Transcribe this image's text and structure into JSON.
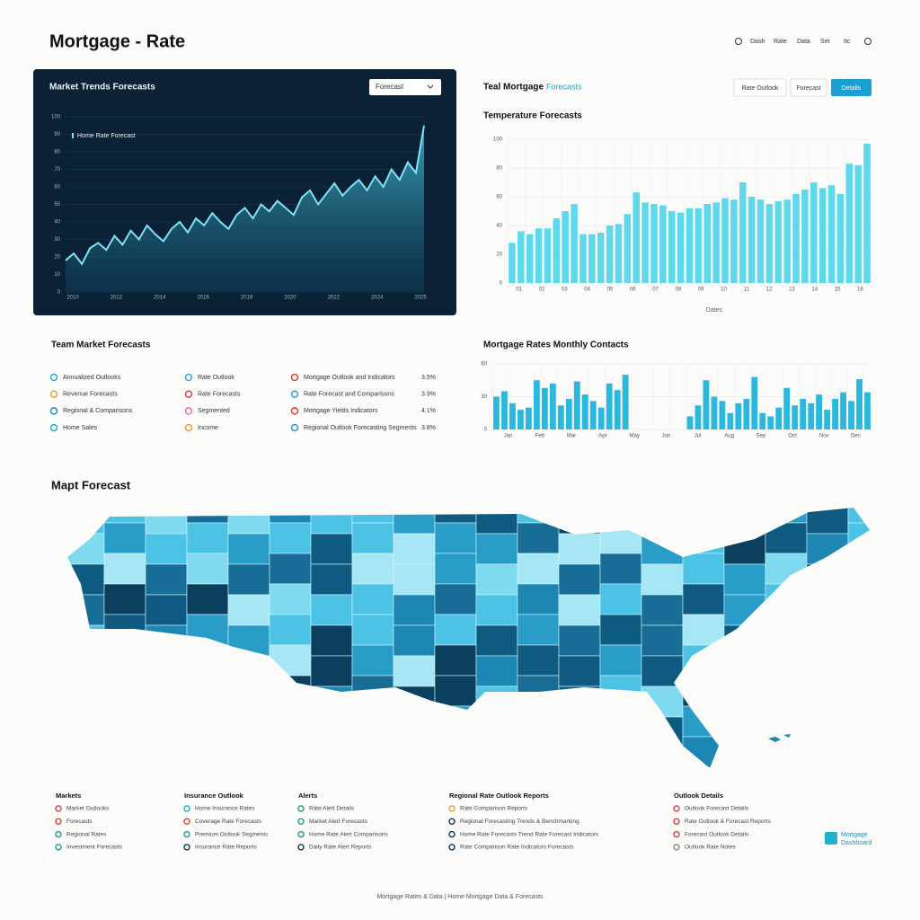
{
  "header": {
    "title": "Mortgage - Rate",
    "nav": [
      "Dash",
      "Rate",
      "Data",
      "Set",
      "Itc"
    ]
  },
  "area_chart": {
    "title": "Market Trends Forecasts",
    "dropdown": "Forecast",
    "legend": "Home Rate Forecast",
    "color": "#7fe3f5",
    "values": [
      18,
      22,
      16,
      25,
      28,
      24,
      32,
      27,
      35,
      30,
      38,
      33,
      29,
      36,
      40,
      34,
      42,
      38,
      45,
      40,
      36,
      44,
      48,
      42,
      50,
      46,
      52,
      48,
      44,
      54,
      58,
      50,
      56,
      62,
      55,
      60,
      64,
      58,
      66,
      60,
      70,
      64,
      74,
      68,
      95
    ],
    "ylim": [
      0,
      100
    ],
    "yticks": [
      0,
      10,
      20,
      30,
      40,
      50,
      60,
      70,
      80,
      90,
      100
    ],
    "xlabels": [
      "2010",
      "2012",
      "2014",
      "2016",
      "2018",
      "2020",
      "2022",
      "2024",
      "2025"
    ]
  },
  "bar_chart": {
    "title": "Teal Mortgage",
    "subtitle_link": "Forecasts",
    "buttons": [
      "Rate Outlook",
      "Forecast",
      "Details"
    ],
    "chart_title": "Temperature Forecasts",
    "x_label": "Dates",
    "color": "#5fd8ec",
    "values": [
      28,
      36,
      34,
      38,
      38,
      45,
      50,
      55,
      34,
      34,
      35,
      40,
      41,
      48,
      63,
      56,
      55,
      54,
      50,
      49,
      52,
      52,
      55,
      56,
      59,
      58,
      70,
      60,
      58,
      55,
      57,
      58,
      62,
      65,
      70,
      66,
      68,
      62,
      83,
      82,
      97
    ],
    "ylim": [
      0,
      100
    ],
    "yticks": [
      0,
      20,
      40,
      60,
      80,
      100
    ],
    "xlabels": [
      "01",
      "02",
      "03",
      "04",
      "05",
      "06",
      "07",
      "08",
      "09",
      "10",
      "11",
      "12",
      "13",
      "14",
      "15",
      "16"
    ]
  },
  "team": {
    "title": "Team Market Forecasts",
    "columns": [
      [
        {
          "label": "Annualized Outlooks",
          "color": "#22b3c9"
        },
        {
          "label": "Revenue Forecasts",
          "color": "#f0a030"
        },
        {
          "label": "Regional & Comparisons",
          "color": "#1a8fb0"
        },
        {
          "label": "Home Sales",
          "color": "#22b3c9"
        }
      ],
      [
        {
          "label": "Rate Outlook",
          "color": "#3aa8e0"
        },
        {
          "label": "Rate Forecasts",
          "color": "#d94040"
        },
        {
          "label": "Segmented",
          "color": "#e070a0"
        },
        {
          "label": "Income",
          "color": "#f0a030"
        }
      ],
      [
        {
          "label": "Mortgage Outlook and Indicators",
          "value": "3.5%",
          "color": "#d94040"
        },
        {
          "label": "Rate Forecast and Comparisons",
          "value": "3.9%",
          "color": "#2aa0d8"
        },
        {
          "label": "Mortgage Yields Indicators",
          "value": "4.1%",
          "color": "#d94040"
        },
        {
          "label": "Regional Outlook Forecasting Segments",
          "value": "3.8%",
          "color": "#2aa0d8"
        }
      ]
    ]
  },
  "monthly_chart": {
    "title": "Mortgage Rates Monthly Contacts",
    "color": "#2cb8dc",
    "values": [
      30,
      35,
      24,
      18,
      20,
      45,
      38,
      42,
      22,
      28,
      44,
      32,
      26,
      20,
      42,
      36,
      50,
      0,
      0,
      0,
      0,
      0,
      0,
      0,
      12,
      22,
      45,
      30,
      26,
      15,
      24,
      28,
      48,
      15,
      12,
      20,
      38,
      22,
      28,
      24,
      32,
      18,
      28,
      34,
      26,
      46,
      34
    ],
    "ylim": [
      0,
      60
    ],
    "yticks": [
      0,
      30,
      60
    ],
    "xlabels": [
      "Jan",
      "Feb",
      "Mar",
      "Apr",
      "May",
      "Jun",
      "Jul",
      "Aug",
      "Sep",
      "Oct",
      "Nov",
      "Dec"
    ]
  },
  "map": {
    "title": "Mapt Forecast"
  },
  "footer_columns": [
    {
      "heading": "Markets",
      "items": [
        {
          "label": "Market Outlooks",
          "color": "#d94040"
        },
        {
          "label": "Forecasts",
          "color": "#d94040"
        },
        {
          "label": "Regional Rates",
          "color": "#1aa080"
        },
        {
          "label": "Investment Forecasts",
          "color": "#1aa080"
        }
      ]
    },
    {
      "heading": "Insurance Outlook",
      "items": [
        {
          "label": "Home Insurance Rates",
          "color": "#22b3c9"
        },
        {
          "label": "Coverage Rate Forecasts",
          "color": "#d94040"
        },
        {
          "label": "Premium Outlook Segments",
          "color": "#1aa080"
        },
        {
          "label": "Insurance Rate Reports",
          "color": "#0b3a5a"
        }
      ]
    },
    {
      "heading": "Alerts",
      "items": [
        {
          "label": "Rate Alert Details",
          "color": "#1aa080"
        },
        {
          "label": "Market Alert Forecasts",
          "color": "#1aa080"
        },
        {
          "label": "Home Rate Alert Comparisons",
          "color": "#1aa080"
        },
        {
          "label": "Daily Rate Alert Reports",
          "color": "#0b3a5a"
        }
      ]
    },
    {
      "heading": "Regional Rate Outlook Reports",
      "items": [
        {
          "label": "Rate Comparison Reports",
          "color": "#f0a030"
        },
        {
          "label": "Regional Forecasting Trends & Benchmarking",
          "color": "#0b3a5a"
        },
        {
          "label": "Home Rate Forecasts Trend Rate Forecast Indicators",
          "color": "#0b3a5a"
        },
        {
          "label": "Rate Comparison Rate Indicators Forecasts",
          "color": "#0b3a5a"
        }
      ]
    },
    {
      "heading": "Outlook Details",
      "items": [
        {
          "label": "Outlook Forecast Details",
          "color": "#d94040"
        },
        {
          "label": "Rate Outlook & Forecast Reports",
          "color": "#d94040"
        },
        {
          "label": "Forecast Outlook Details",
          "color": "#d94040"
        },
        {
          "label": "Outlook Rate Notes",
          "color": "#888888"
        }
      ]
    }
  ],
  "logo": {
    "line1": "Mortgage",
    "line2": "Dashboard"
  },
  "footer": "Mortgage Rates & Data | Home Mortgage Data & Forecasts"
}
